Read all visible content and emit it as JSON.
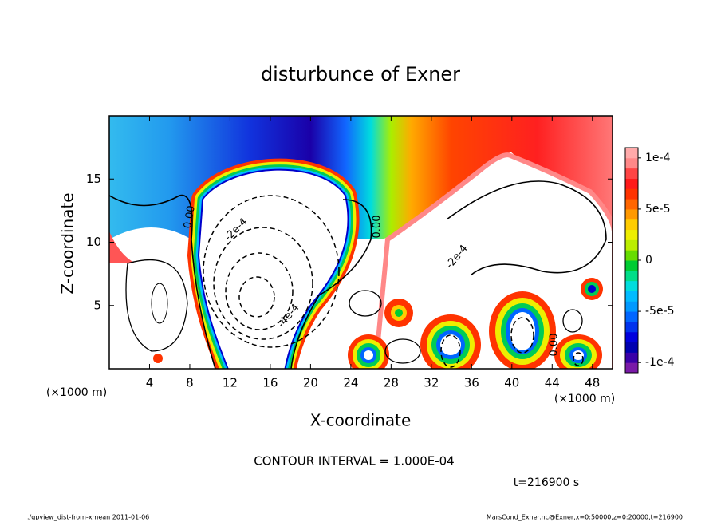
{
  "chart_data": {
    "type": "contour",
    "title": "disturbunce of Exner",
    "x_label": "X-coordinate",
    "y_label": "Z-coordinate",
    "x_unit_label": "(×1000 m)",
    "y_unit_label": "(×1000 m)",
    "xlim": [
      0,
      50
    ],
    "xticks": [
      4,
      8,
      12,
      16,
      20,
      24,
      28,
      32,
      36,
      40,
      44,
      48
    ],
    "ylim": [
      0,
      20
    ],
    "yticks": [
      5,
      10,
      15
    ],
    "colorbar": {
      "lim": [
        -0.00011,
        0.00011
      ],
      "ticks": [
        {
          "value": 0.0001,
          "label": "1e-4"
        },
        {
          "value": 5e-05,
          "label": "5e-5"
        },
        0,
        {
          "value": -5e-05,
          "label": "-5e-5"
        },
        {
          "value": -0.0001,
          "label": "-1e-4"
        }
      ],
      "colors": [
        "#7a1aa8",
        "#3a00a8",
        "#0000b0",
        "#0000dd",
        "#0033ee",
        "#0066ff",
        "#0099ff",
        "#00bbff",
        "#00dddd",
        "#00dd88",
        "#00cc33",
        "#66dd00",
        "#bbee00",
        "#eeee00",
        "#ffcc00",
        "#ff9900",
        "#ff6600",
        "#ff3300",
        "#ff1a1a",
        "#ff4444",
        "#ff8888",
        "#ffaaaa"
      ]
    },
    "contour_labels": [
      "0.00",
      "0.00",
      "-2e-4",
      "-4e-4",
      "-2e-4",
      "0.00"
    ],
    "contour_interval": "CONTOUR INTERVAL = 1.000E-04",
    "time_label": "t=216900 s",
    "footer_left": "./gpview_dist-from-xmean  2011-01-06",
    "footer_right": "MarsCond_Exner.nc@Exner,x=0:50000,z=0:20000,t=216900"
  }
}
